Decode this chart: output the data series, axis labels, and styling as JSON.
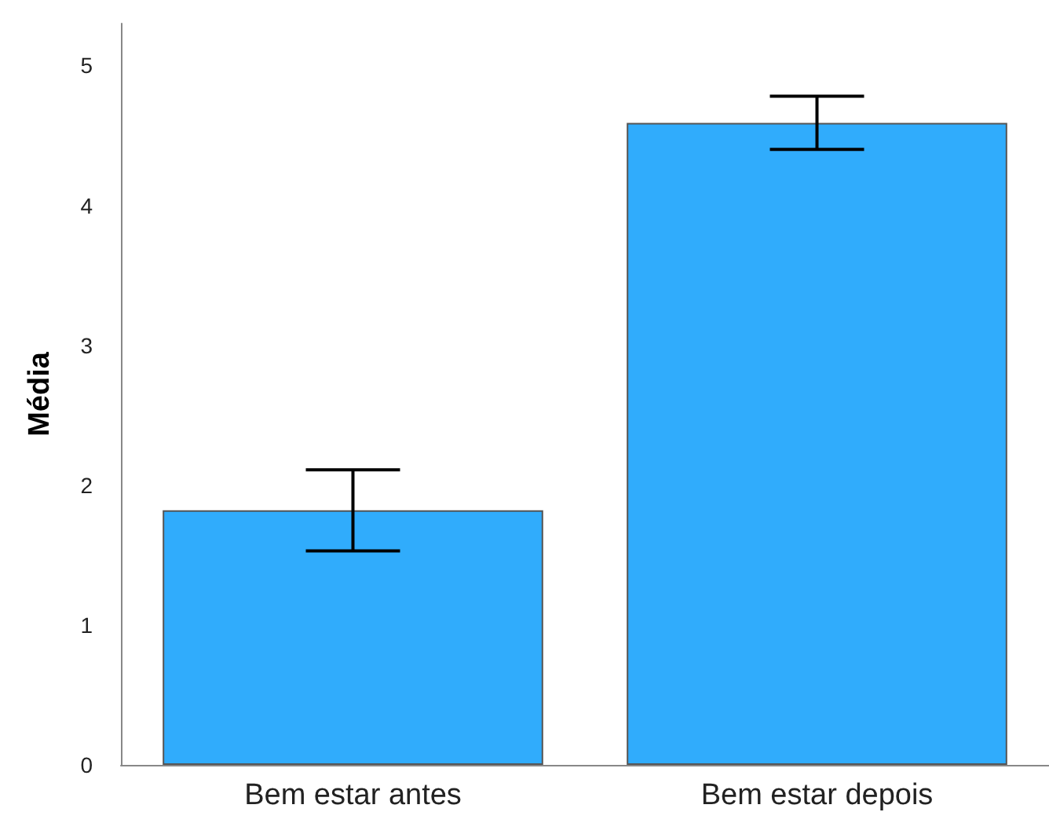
{
  "chart_data": {
    "type": "bar",
    "ylabel": "Média",
    "categories": [
      "Bem estar antes",
      "Bem estar depois"
    ],
    "values": [
      1.82,
      4.59
    ],
    "color": "#30acfc",
    "errors": [
      0.29,
      0.19
    ],
    "ylim": [
      0,
      5.3
    ],
    "yticks": [
      0,
      1,
      2,
      3,
      4,
      5
    ],
    "grid": false
  }
}
